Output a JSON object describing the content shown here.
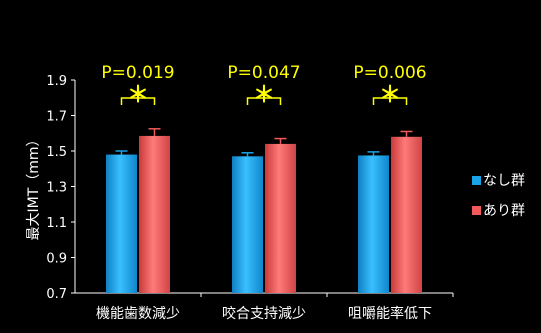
{
  "chart_data": {
    "type": "bar",
    "categories": [
      "機能歯数減少",
      "咬合支持減少",
      "咀嚼能率低下"
    ],
    "series": [
      {
        "name": "なし群",
        "values": [
          1.48,
          1.47,
          1.475
        ],
        "errors": [
          0.02,
          0.02,
          0.02
        ],
        "color": "#1aa3e8"
      },
      {
        "name": "あり群",
        "values": [
          1.585,
          1.54,
          1.58
        ],
        "errors": [
          0.04,
          0.03,
          0.03
        ],
        "color": "#f05a5a"
      }
    ],
    "ylabel": "最大IMT（mm）",
    "ylim": [
      0.7,
      1.9
    ],
    "yticks": [
      "0.7",
      "0.9",
      "1.1",
      "1.3",
      "1.5",
      "1.7",
      "1.9"
    ],
    "annotations": [
      "P=0.019",
      "P=0.047",
      "P=0.006"
    ],
    "significance_marker": "＊",
    "legend_position": "right",
    "grid": false
  }
}
